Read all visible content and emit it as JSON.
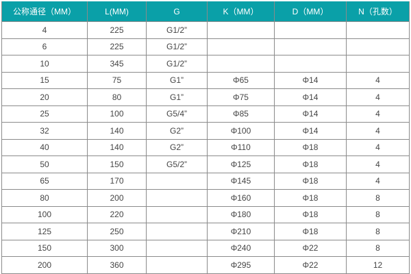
{
  "table": {
    "headers": [
      "公称通径（MM）",
      "L(MM)",
      "G",
      "K（MM）",
      "D（MM）",
      "N（孔数）"
    ],
    "header_color": "#0aa0a8",
    "rows": [
      [
        "4",
        "225",
        "G1/2”",
        "",
        "",
        ""
      ],
      [
        "6",
        "225",
        "G1/2”",
        "",
        "",
        ""
      ],
      [
        "10",
        "345",
        "G1/2”",
        "",
        "",
        ""
      ],
      [
        "15",
        "75",
        "G1”",
        "Φ65",
        "Φ14",
        "4"
      ],
      [
        "20",
        "80",
        "G1”",
        "Φ75",
        "Φ14",
        "4"
      ],
      [
        "25",
        "100",
        "G5/4”",
        "Φ85",
        "Φ14",
        "4"
      ],
      [
        "32",
        "140",
        "G2”",
        "Φ100",
        "Φ14",
        "4"
      ],
      [
        "40",
        "140",
        "G2”",
        "Φ110",
        "Φ18",
        "4"
      ],
      [
        "50",
        "150",
        "G5/2”",
        "Φ125",
        "Φ18",
        "4"
      ],
      [
        "65",
        "170",
        "",
        "Φ145",
        "Φ18",
        "4"
      ],
      [
        "80",
        "200",
        "",
        "Φ160",
        "Φ18",
        "8"
      ],
      [
        "100",
        "220",
        "",
        "Φ180",
        "Φ18",
        "8"
      ],
      [
        "125",
        "250",
        "",
        "Φ210",
        "Φ18",
        "8"
      ],
      [
        "150",
        "300",
        "",
        "Φ240",
        "Φ22",
        "8"
      ],
      [
        "200",
        "360",
        "",
        "Φ295",
        "Φ22",
        "12"
      ]
    ]
  }
}
